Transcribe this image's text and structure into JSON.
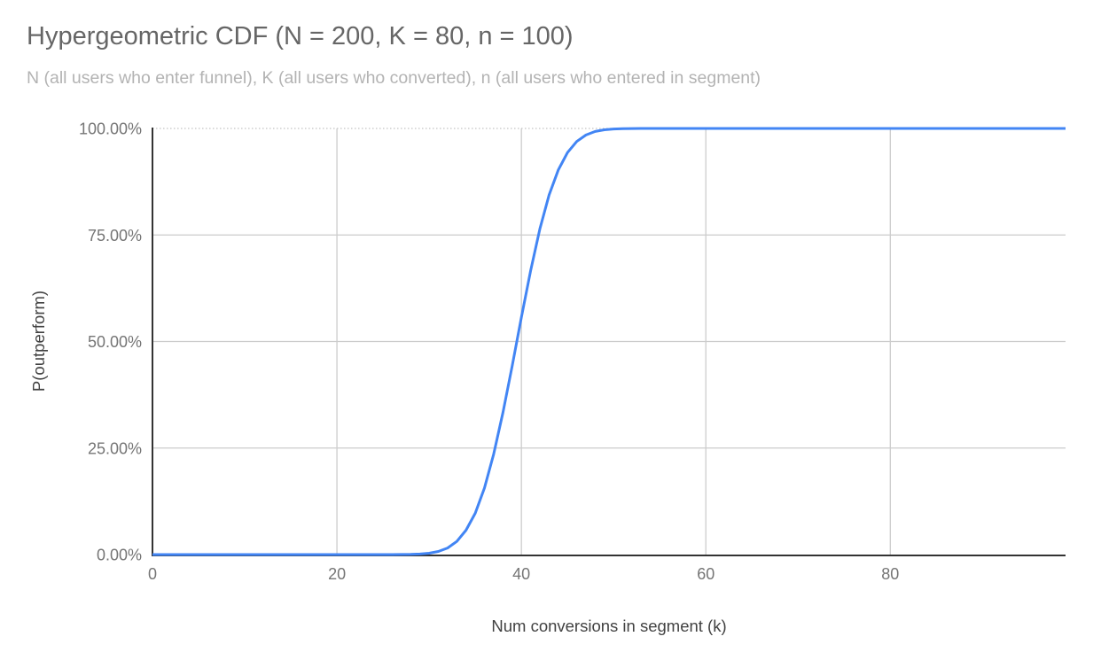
{
  "chart_data": {
    "type": "line",
    "title": "Hypergeometric CDF (N = 200, K = 80, n = 100)",
    "subtitle": "N (all users who enter funnel), K (all users who converted), n (all users who entered in segment)",
    "xlabel": "Num conversions in segment (k)",
    "ylabel": "P(outperform)",
    "xlim": [
      0,
      99
    ],
    "ylim": [
      0,
      1
    ],
    "grid": true,
    "legend": "none",
    "x_ticks": [
      {
        "value": 0,
        "label": "0"
      },
      {
        "value": 20,
        "label": "20"
      },
      {
        "value": 40,
        "label": "40"
      },
      {
        "value": 60,
        "label": "60"
      },
      {
        "value": 80,
        "label": "80"
      }
    ],
    "y_ticks": [
      {
        "value": 0,
        "label": "0.00%"
      },
      {
        "value": 0.25,
        "label": "25.00%"
      },
      {
        "value": 0.5,
        "label": "50.00%"
      },
      {
        "value": 0.75,
        "label": "75.00%"
      },
      {
        "value": 1,
        "label": "100.00%"
      }
    ],
    "series": [
      {
        "name": "P(outperform)",
        "color": "#4285f4",
        "x_start": 0,
        "x_step": 1,
        "values": [
          0,
          0,
          0,
          0,
          0,
          0,
          0,
          0,
          0,
          0,
          0,
          0,
          0,
          0,
          0,
          0,
          0,
          0,
          0,
          0,
          0,
          0,
          0,
          0,
          0,
          1e-05,
          5e-05,
          0.0002,
          0.0005,
          0.0013,
          0.0031,
          0.0072,
          0.0154,
          0.0307,
          0.0571,
          0.0968,
          0.1562,
          0.2358,
          0.3336,
          0.4428,
          0.5572,
          0.6664,
          0.7642,
          0.8438,
          0.9027,
          0.9435,
          0.9694,
          0.9846,
          0.9929,
          0.9969,
          0.9987,
          0.9995,
          0.9998,
          0.9999,
          1,
          1,
          1,
          1,
          1,
          1,
          1,
          1,
          1,
          1,
          1,
          1,
          1,
          1,
          1,
          1,
          1,
          1,
          1,
          1,
          1,
          1,
          1,
          1,
          1,
          1,
          1,
          1,
          1,
          1,
          1,
          1,
          1,
          1,
          1,
          1,
          1,
          1,
          1,
          1,
          1,
          1,
          1,
          1,
          1,
          1
        ]
      }
    ]
  },
  "colors": {
    "line": "#4285f4",
    "gridline": "#cccccc",
    "top_gridline": "#c4c4c4",
    "axis": "#333333",
    "tick_label": "#757575",
    "axis_title": "#424242",
    "title": "#666666",
    "subtitle": "#b3b3b3",
    "background": "#ffffff"
  }
}
